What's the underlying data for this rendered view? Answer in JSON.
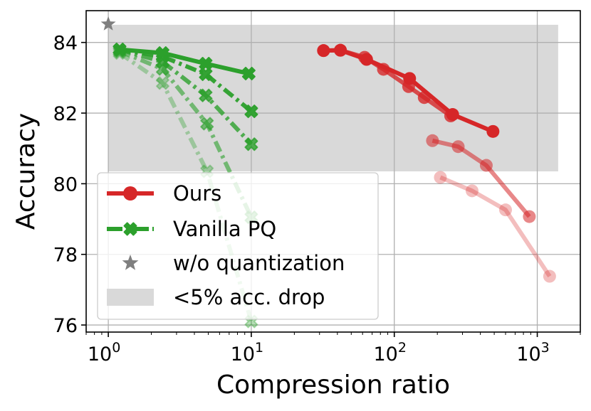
{
  "chart_data": {
    "type": "line",
    "xscale": "log",
    "xlim": [
      0.7,
      2000
    ],
    "ylim": [
      75.8,
      84.9
    ],
    "xlabel": "Compression ratio",
    "ylabel": "Accuracy",
    "x_ticks": [
      {
        "value": 1,
        "base": "10",
        "exp": "0"
      },
      {
        "value": 10,
        "base": "10",
        "exp": "1"
      },
      {
        "value": 100,
        "base": "10",
        "exp": "2"
      },
      {
        "value": 1000,
        "base": "10",
        "exp": "3"
      }
    ],
    "y_ticks": [
      {
        "value": 76,
        "label": "76"
      },
      {
        "value": 78,
        "label": "78"
      },
      {
        "value": 80,
        "label": "80"
      },
      {
        "value": 82,
        "label": "82"
      },
      {
        "value": 84,
        "label": "84"
      }
    ],
    "grid": true,
    "shaded_region": {
      "x": [
        1,
        1400
      ],
      "y": [
        80.35,
        84.5
      ],
      "color": "#d9d9d9"
    },
    "colors": {
      "ours": "#d62728",
      "vanilla": "#2ca02c",
      "star": "#7f7f7f"
    },
    "series": [
      {
        "name": "Ours",
        "group": "ours",
        "opacity": 1.0,
        "x": [
          32,
          42,
          64,
          128,
          256,
          490
        ],
        "y": [
          83.77,
          83.78,
          83.52,
          82.98,
          81.96,
          81.48
        ]
      },
      {
        "name": "Ours",
        "group": "ours",
        "opacity": 0.8,
        "x": [
          32,
          42,
          62,
          84,
          126,
          162,
          248
        ],
        "y": [
          83.77,
          83.78,
          83.58,
          83.24,
          82.75,
          82.44,
          81.92
        ]
      },
      {
        "name": "Ours",
        "group": "ours",
        "opacity": 0.55,
        "x": [
          185,
          280,
          440,
          880
        ],
        "y": [
          81.22,
          81.05,
          80.52,
          79.07
        ]
      },
      {
        "name": "Ours",
        "group": "ours",
        "opacity": 0.3,
        "x": [
          210,
          350,
          600,
          1220
        ],
        "y": [
          80.18,
          79.8,
          79.26,
          77.38
        ]
      },
      {
        "name": "Vanilla PQ",
        "group": "vanilla",
        "opacity": 1.0,
        "dash": "solid",
        "x": [
          1.2,
          2.4,
          4.8,
          9.6
        ],
        "y": [
          83.8,
          83.7,
          83.4,
          83.12
        ]
      },
      {
        "name": "Vanilla PQ",
        "group": "vanilla",
        "opacity": 0.95,
        "dash": "dashdot",
        "x": [
          1.2,
          2.4,
          4.8,
          10
        ],
        "y": [
          83.8,
          83.6,
          83.1,
          82.05
        ]
      },
      {
        "name": "Vanilla PQ",
        "group": "vanilla",
        "opacity": 0.8,
        "dash": "dashdot",
        "x": [
          1.2,
          2.4,
          4.8,
          10
        ],
        "y": [
          83.8,
          83.45,
          82.5,
          81.12
        ]
      },
      {
        "name": "Vanilla PQ",
        "group": "vanilla",
        "opacity": 0.6,
        "dash": "dashdot",
        "x": [
          1.2,
          2.4,
          4.9,
          10
        ],
        "y": [
          83.75,
          83.25,
          81.7,
          79.05
        ]
      },
      {
        "name": "Vanilla PQ",
        "group": "vanilla",
        "opacity": 0.35,
        "dash": "dashdot",
        "x": [
          1.2,
          2.4,
          4.9,
          10
        ],
        "y": [
          83.7,
          82.85,
          80.35,
          76.1
        ]
      }
    ],
    "reference_point": {
      "name": "w/o quantization",
      "x": 1.0,
      "y": 84.52
    },
    "legend": {
      "position": "lower-left",
      "entries": [
        {
          "label": "Ours",
          "kind": "ours"
        },
        {
          "label": "Vanilla PQ",
          "kind": "vanilla"
        },
        {
          "label": "w/o quantization",
          "kind": "star"
        },
        {
          "label": "<5% acc. drop",
          "kind": "region"
        }
      ]
    }
  }
}
